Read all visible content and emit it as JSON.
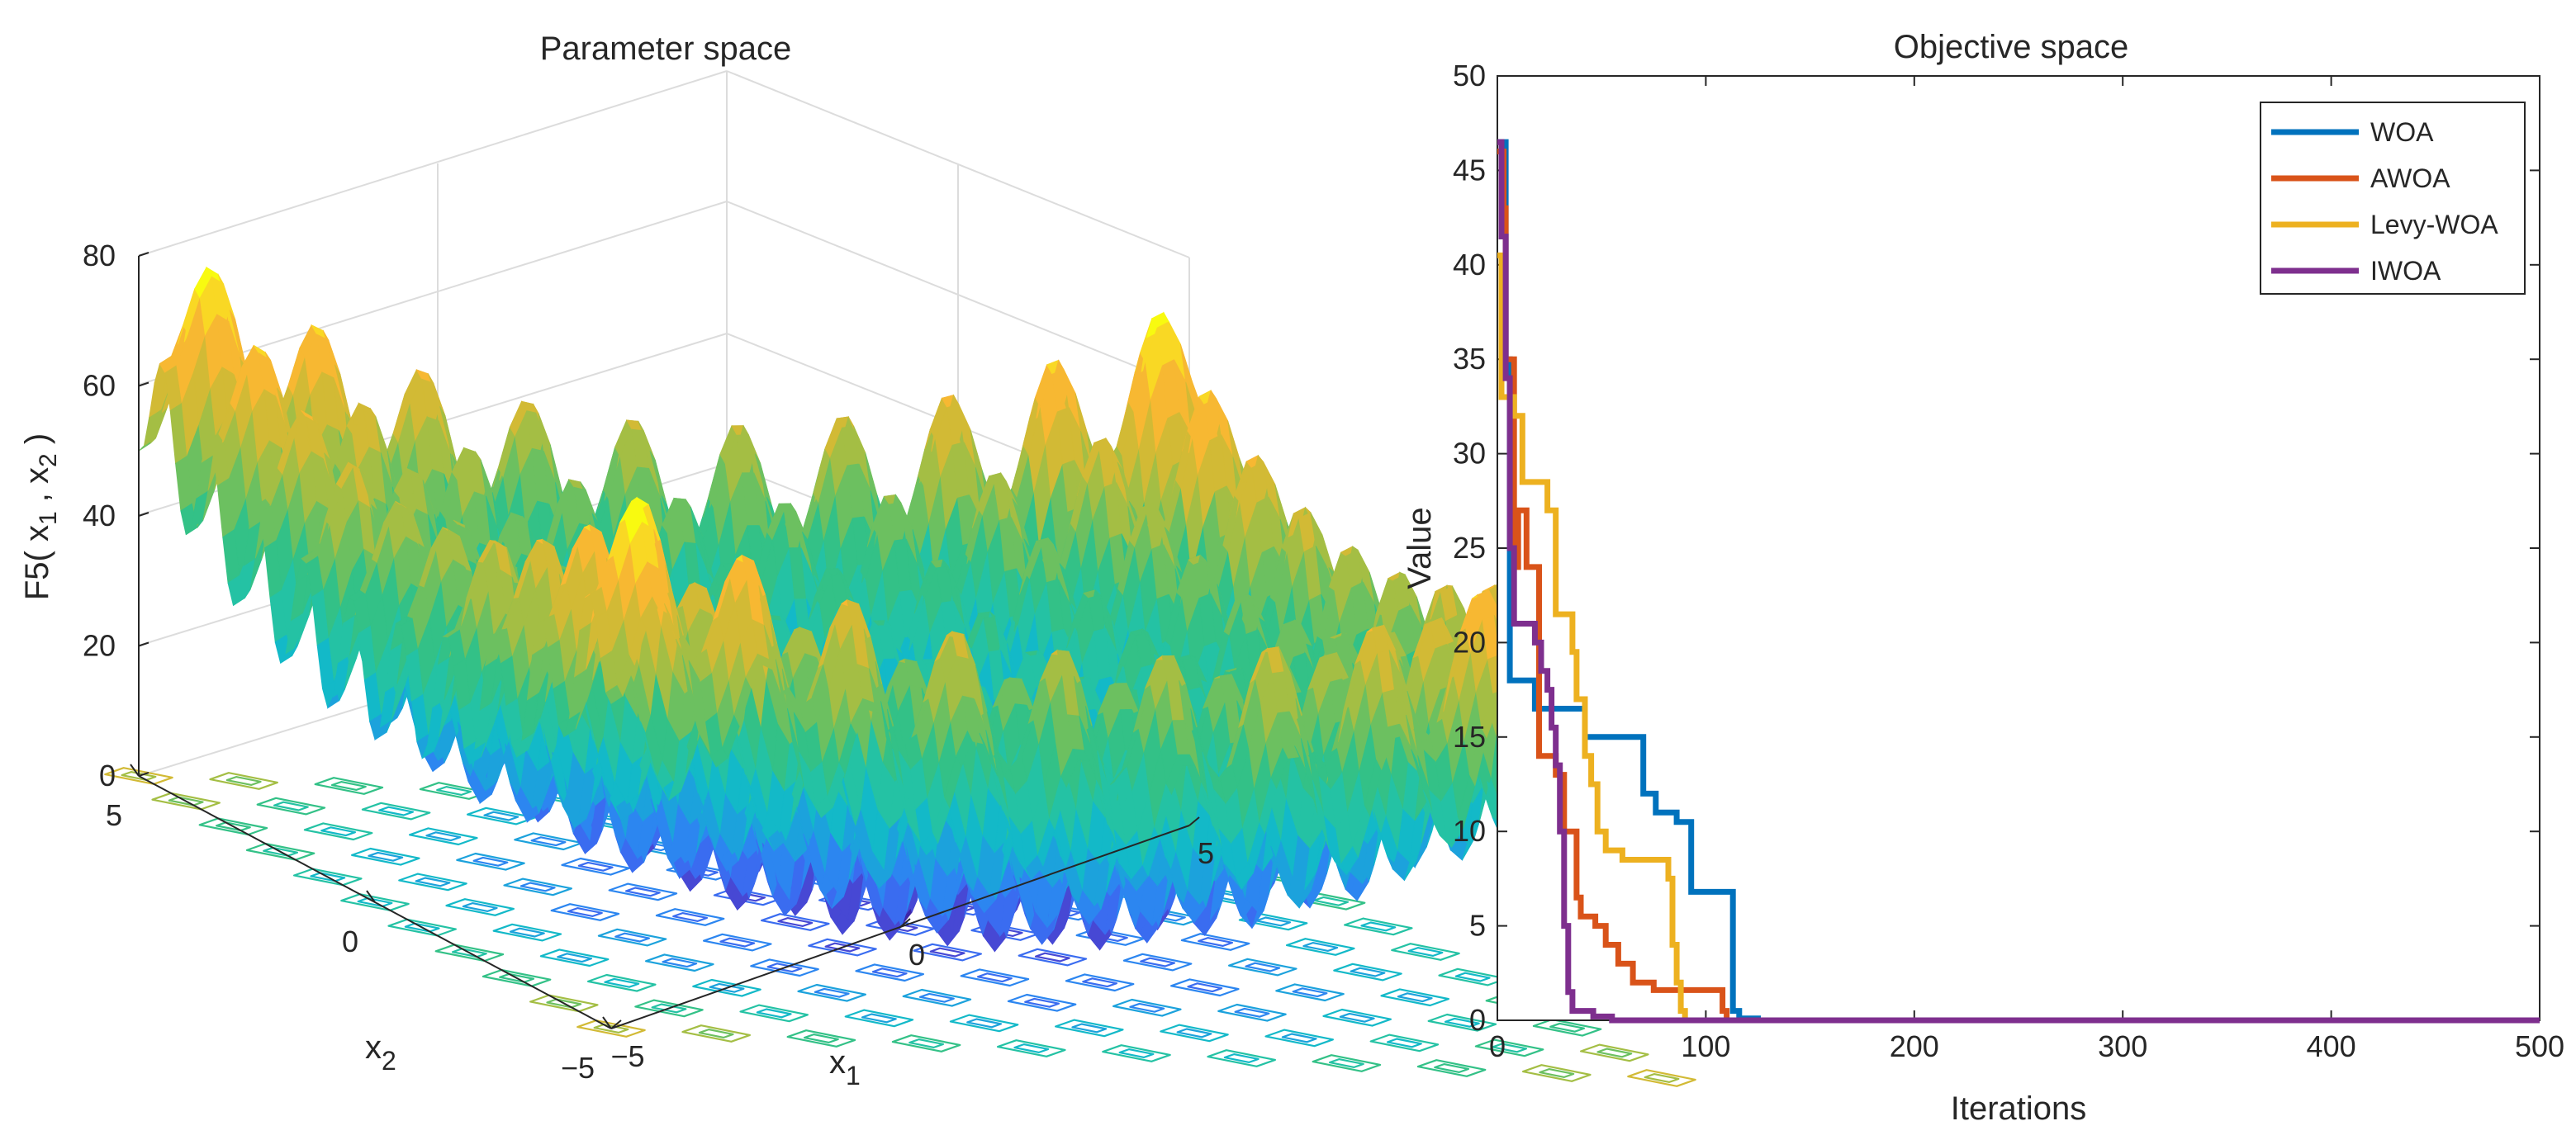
{
  "chart_data": [
    {
      "type": "surface3d",
      "title": "Parameter space",
      "zlabel": "F5( x1 , x2 )",
      "zlabel_parts": {
        "prefix": "F5( x",
        "sub1": "1",
        "mid": " , x",
        "sub2": "2",
        "suffix": " )"
      },
      "xlabel": {
        "base": "x",
        "sub": "1"
      },
      "ylabel": {
        "base": "x",
        "sub": "2"
      },
      "zlim": [
        0,
        80
      ],
      "zticks": [
        "80",
        "60",
        "40",
        "20",
        "0"
      ],
      "x1ticks": [
        "−5",
        "0",
        "5"
      ],
      "x2ticks": [
        "5",
        "0",
        "−5"
      ],
      "xlim": [
        -5,
        5
      ],
      "ylim": [
        -5,
        5
      ],
      "description": "Rastrigin-like multimodal surface with contour plot on the base plane"
    },
    {
      "type": "line",
      "title": "Objective space",
      "xlabel": "Iterations",
      "ylabel": "Value",
      "xlim": [
        0,
        500
      ],
      "ylim": [
        0,
        50
      ],
      "xticks": [
        "0",
        "100",
        "200",
        "300",
        "400",
        "500"
      ],
      "yticks": [
        "0",
        "5",
        "10",
        "15",
        "20",
        "25",
        "30",
        "35",
        "40",
        "45",
        "50"
      ],
      "legend_position": "top-right",
      "series": [
        {
          "name": "WOA",
          "color": "#0072BD",
          "points": [
            [
              0,
              46.5
            ],
            [
              4,
              46.5
            ],
            [
              4,
              35
            ],
            [
              6,
              35
            ],
            [
              6,
              18
            ],
            [
              18,
              18
            ],
            [
              18,
              16.5
            ],
            [
              42,
              16.5
            ],
            [
              42,
              15
            ],
            [
              70,
              15
            ],
            [
              70,
              12
            ],
            [
              76,
              12
            ],
            [
              76,
              11
            ],
            [
              86,
              11
            ],
            [
              86,
              10.5
            ],
            [
              93,
              10.5
            ],
            [
              93,
              6.8
            ],
            [
              113,
              6.8
            ],
            [
              113,
              0.5
            ],
            [
              116,
              0.5
            ],
            [
              116,
              0.1
            ],
            [
              125,
              0.1
            ],
            [
              125,
              0
            ],
            [
              500,
              0
            ]
          ]
        },
        {
          "name": "AWOA",
          "color": "#D95319",
          "points": [
            [
              0,
              46
            ],
            [
              3,
              46
            ],
            [
              3,
              43
            ],
            [
              4,
              43
            ],
            [
              4,
              35
            ],
            [
              8,
              35
            ],
            [
              8,
              24
            ],
            [
              10,
              24
            ],
            [
              10,
              27
            ],
            [
              14,
              27
            ],
            [
              14,
              24
            ],
            [
              20,
              24
            ],
            [
              20,
              14
            ],
            [
              28,
              14
            ],
            [
              28,
              13
            ],
            [
              32,
              13
            ],
            [
              32,
              10
            ],
            [
              38,
              10
            ],
            [
              38,
              6.5
            ],
            [
              40,
              6.5
            ],
            [
              40,
              5.5
            ],
            [
              47,
              5.5
            ],
            [
              47,
              5
            ],
            [
              52,
              5
            ],
            [
              52,
              4
            ],
            [
              58,
              4
            ],
            [
              58,
              3
            ],
            [
              65,
              3
            ],
            [
              65,
              2
            ],
            [
              75,
              2
            ],
            [
              75,
              1.6
            ],
            [
              108,
              1.6
            ],
            [
              108,
              0.5
            ],
            [
              110,
              0.5
            ],
            [
              110,
              0
            ],
            [
              500,
              0
            ]
          ]
        },
        {
          "name": "Levy-WOA",
          "color": "#EDB120",
          "points": [
            [
              0,
              40.5
            ],
            [
              2,
              40.5
            ],
            [
              2,
              33
            ],
            [
              8,
              33
            ],
            [
              8,
              32
            ],
            [
              12,
              32
            ],
            [
              12,
              28.5
            ],
            [
              24,
              28.5
            ],
            [
              24,
              27
            ],
            [
              28,
              27
            ],
            [
              28,
              21.5
            ],
            [
              36,
              21.5
            ],
            [
              36,
              19.5
            ],
            [
              38,
              19.5
            ],
            [
              38,
              17
            ],
            [
              42,
              17
            ],
            [
              42,
              14
            ],
            [
              45,
              14
            ],
            [
              45,
              12.5
            ],
            [
              48,
              12.5
            ],
            [
              48,
              10
            ],
            [
              52,
              10
            ],
            [
              52,
              9
            ],
            [
              60,
              9
            ],
            [
              60,
              8.5
            ],
            [
              82,
              8.5
            ],
            [
              82,
              7.5
            ],
            [
              84,
              7.5
            ],
            [
              84,
              4
            ],
            [
              86,
              4
            ],
            [
              86,
              2
            ],
            [
              88,
              2
            ],
            [
              88,
              0.5
            ],
            [
              90,
              0.5
            ],
            [
              90,
              0
            ],
            [
              500,
              0
            ]
          ]
        },
        {
          "name": "IWOA",
          "color": "#7E2F8E",
          "points": [
            [
              0,
              46.5
            ],
            [
              2,
              46.5
            ],
            [
              2,
              41.5
            ],
            [
              4,
              41.5
            ],
            [
              4,
              34
            ],
            [
              6,
              34
            ],
            [
              6,
              25
            ],
            [
              8,
              25
            ],
            [
              8,
              21
            ],
            [
              18,
              21
            ],
            [
              18,
              20
            ],
            [
              21,
              20
            ],
            [
              21,
              18.5
            ],
            [
              24,
              18.5
            ],
            [
              24,
              17.5
            ],
            [
              26,
              17.5
            ],
            [
              26,
              15.5
            ],
            [
              28,
              15.5
            ],
            [
              28,
              13.5
            ],
            [
              30,
              13.5
            ],
            [
              30,
              10
            ],
            [
              32,
              10
            ],
            [
              32,
              5
            ],
            [
              34,
              5
            ],
            [
              34,
              1.5
            ],
            [
              36,
              1.5
            ],
            [
              36,
              0.5
            ],
            [
              46,
              0.5
            ],
            [
              46,
              0.2
            ],
            [
              55,
              0.2
            ],
            [
              55,
              0
            ],
            [
              500,
              0
            ]
          ]
        }
      ]
    }
  ]
}
